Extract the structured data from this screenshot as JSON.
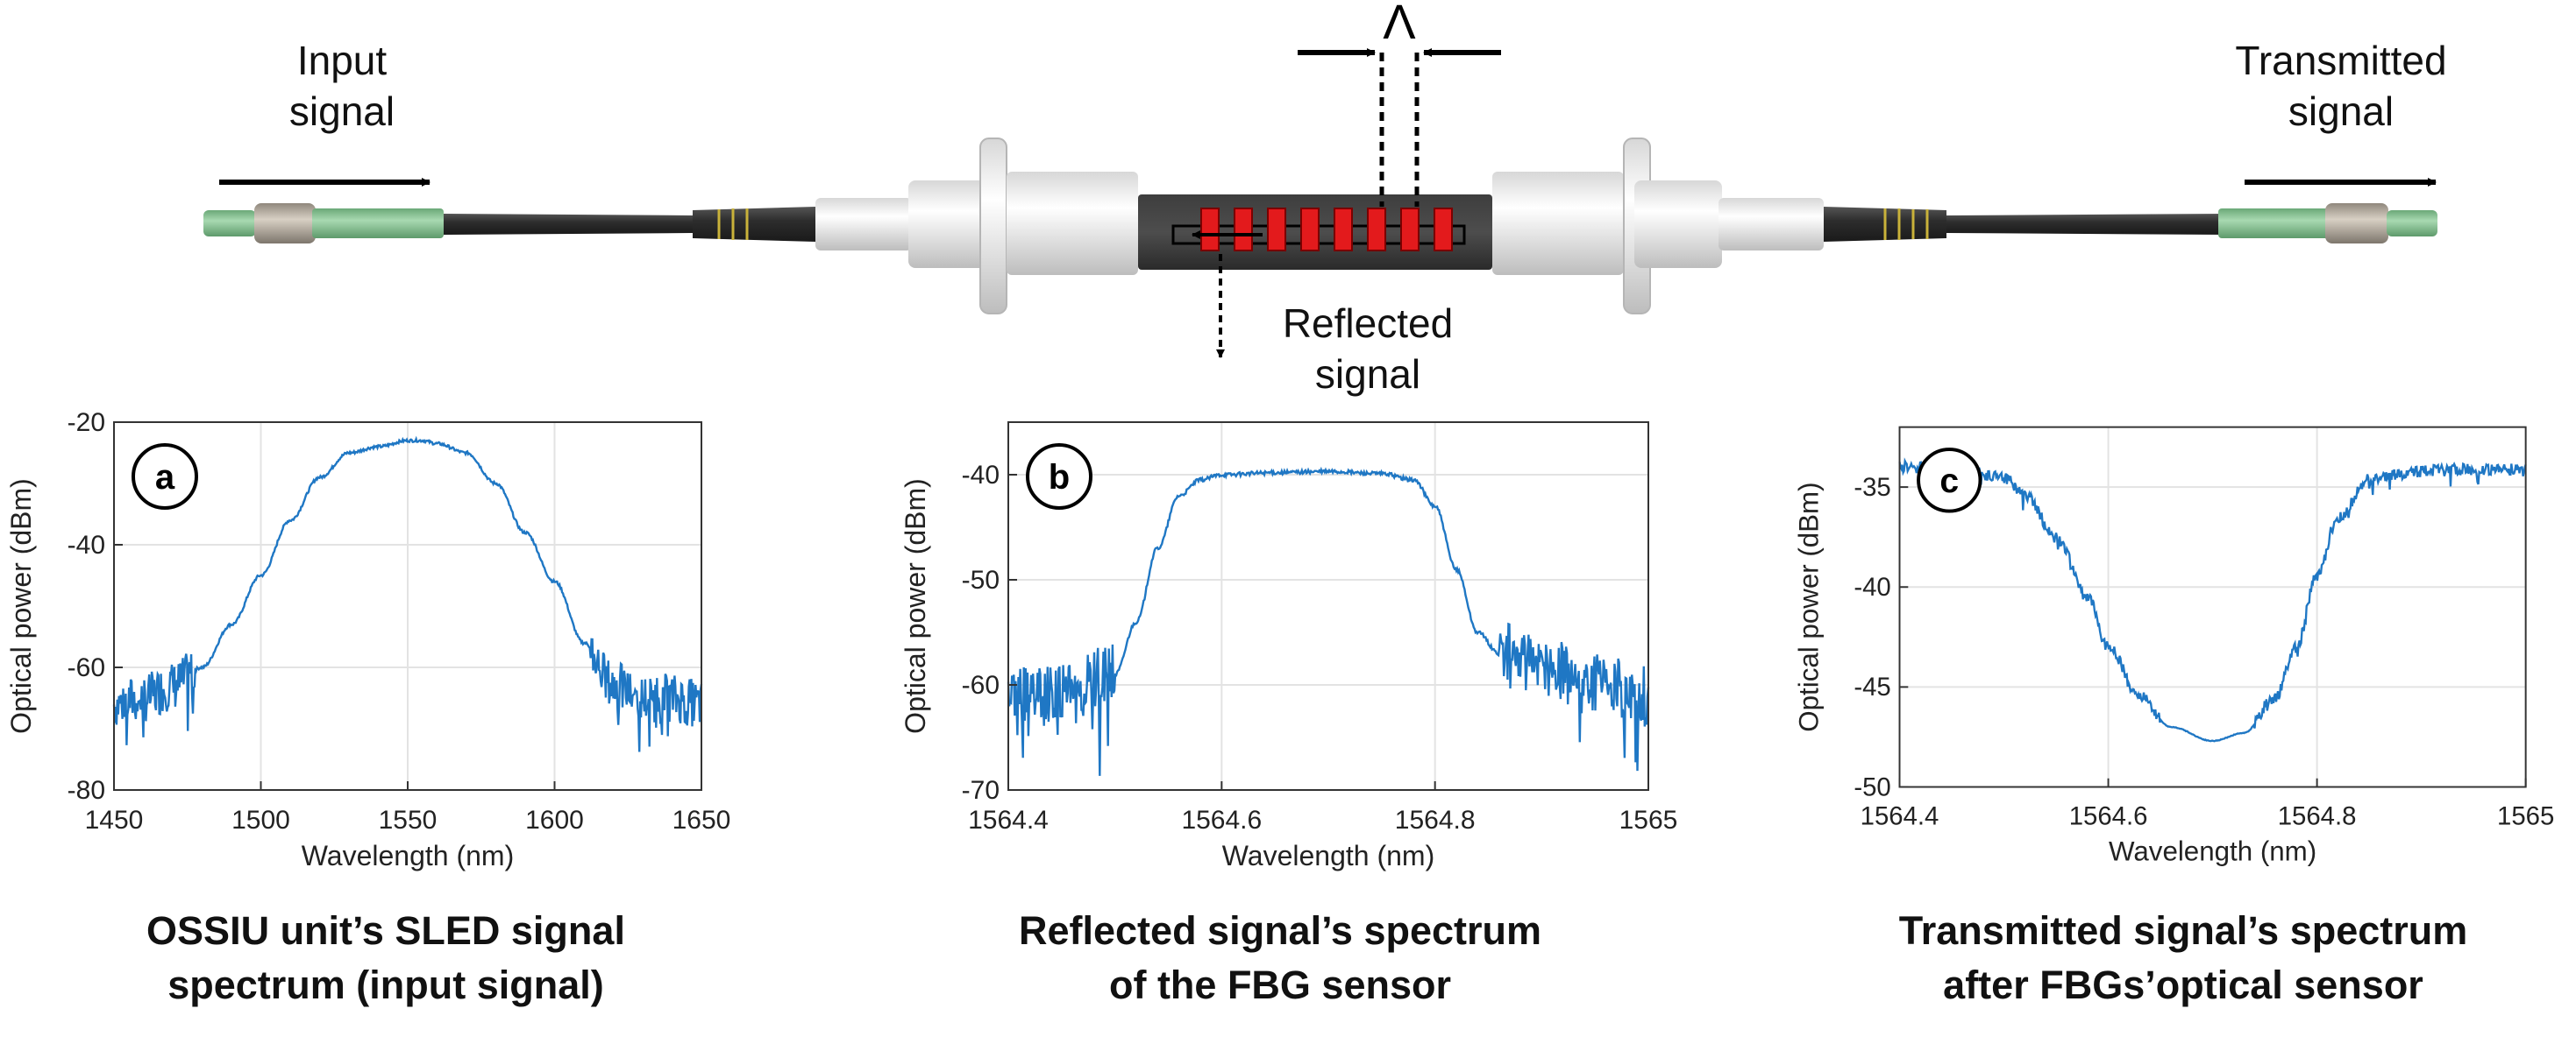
{
  "diagram": {
    "input_label": [
      "Input",
      "signal"
    ],
    "transmitted_label": [
      "Transmitted",
      "signal"
    ],
    "reflected_label": [
      "Reflected",
      "signal"
    ],
    "lambda_symbol": "Λ"
  },
  "colors": {
    "trace": "#1f77c4",
    "grating": "#e31a1c",
    "connector_green": "#8fc79a",
    "sensor_body": "#3a3a3a"
  },
  "chart_data": [
    {
      "type": "line",
      "panel_label": "a",
      "xlabel": "Wavelength (nm)",
      "ylabel": "Optical power (dBm)",
      "xlim": [
        1450,
        1650
      ],
      "ylim": [
        -80,
        -20
      ],
      "xticks": [
        1450,
        1500,
        1550,
        1600,
        1650
      ],
      "yticks": [
        -80,
        -60,
        -40,
        -20
      ],
      "grid": true,
      "noise": {
        "x_low": 1478,
        "x_high": 1612,
        "amp": 4,
        "floor": -66
      },
      "series": [
        {
          "x": [
            1450,
            1460,
            1470,
            1480,
            1490,
            1500,
            1510,
            1520,
            1530,
            1540,
            1550,
            1555,
            1560,
            1570,
            1580,
            1590,
            1600,
            1610,
            1620,
            1630,
            1640,
            1650
          ],
          "y": [
            -66,
            -65,
            -63,
            -60,
            -53,
            -45,
            -36,
            -29,
            -25,
            -24,
            -23,
            -23,
            -23.5,
            -25,
            -30,
            -38,
            -46,
            -56,
            -63,
            -65,
            -65,
            -66
          ]
        }
      ],
      "caption": [
        "OSSIU unit’s  SLED signal",
        "spectrum (input signal)"
      ]
    },
    {
      "type": "line",
      "panel_label": "b",
      "xlabel": "Wavelength (nm)",
      "ylabel": "Optical power (dBm)",
      "xlim": [
        1564.4,
        1565
      ],
      "ylim": [
        -70,
        -35
      ],
      "xticks": [
        1564.4,
        1564.6,
        1564.8,
        1565
      ],
      "yticks": [
        -70,
        -60,
        -50,
        -40
      ],
      "grid": true,
      "noise": {
        "x_low": 1564.5,
        "x_high": 1564.86,
        "amp": 3,
        "floor": -61
      },
      "series": [
        {
          "x": [
            1564.4,
            1564.45,
            1564.5,
            1564.52,
            1564.54,
            1564.56,
            1564.58,
            1564.6,
            1564.65,
            1564.7,
            1564.75,
            1564.78,
            1564.8,
            1564.82,
            1564.84,
            1564.86,
            1564.9,
            1564.95,
            1565
          ],
          "y": [
            -61,
            -61,
            -59,
            -54,
            -47,
            -42,
            -40.5,
            -40,
            -39.8,
            -39.7,
            -39.9,
            -40.5,
            -43,
            -49,
            -55,
            -57,
            -58,
            -60,
            -61
          ]
        }
      ],
      "caption": [
        "Reflected signal’s spectrum",
        "of the FBG sensor"
      ]
    },
    {
      "type": "line",
      "panel_label": "c",
      "xlabel": "Wavelength (nm)",
      "ylabel": "Optical power (dBm)",
      "xlim": [
        1564.4,
        1565
      ],
      "ylim": [
        -50,
        -32
      ],
      "xticks": [
        1564.4,
        1564.6,
        1564.8,
        1565
      ],
      "yticks": [
        -50,
        -45,
        -40,
        -35
      ],
      "grid": true,
      "noise": {
        "x_low": 1564.65,
        "x_high": 1564.74,
        "amp": 0.3,
        "floor": -47.6
      },
      "series": [
        {
          "x": [
            1564.4,
            1564.45,
            1564.5,
            1564.52,
            1564.55,
            1564.58,
            1564.6,
            1564.63,
            1564.66,
            1564.7,
            1564.73,
            1564.76,
            1564.78,
            1564.8,
            1564.82,
            1564.85,
            1564.9,
            1564.95,
            1565
          ],
          "y": [
            -34,
            -34.1,
            -34.5,
            -35.3,
            -37.5,
            -40.5,
            -43,
            -45.5,
            -47,
            -47.7,
            -47.3,
            -45.5,
            -43,
            -39.5,
            -36.5,
            -34.6,
            -34.2,
            -34.1,
            -34.1
          ]
        }
      ],
      "caption": [
        "Transmitted signal’s spectrum",
        "after FBGs’optical sensor"
      ]
    }
  ]
}
